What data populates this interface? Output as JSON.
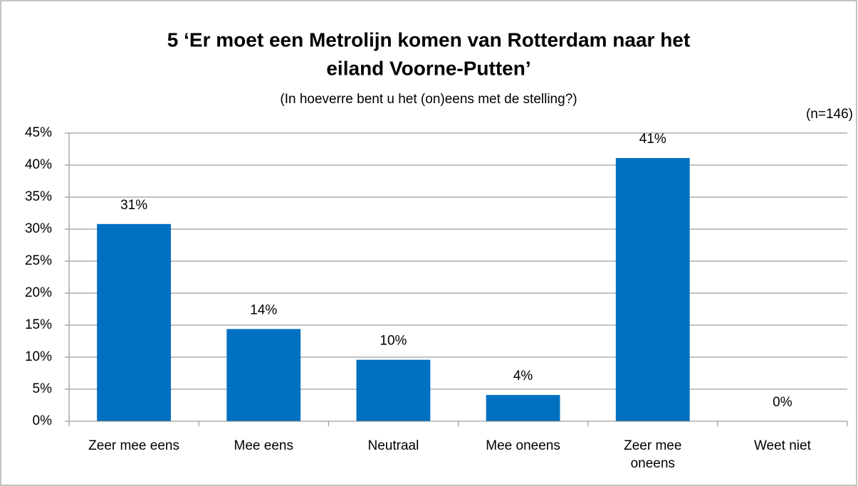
{
  "chart_data": {
    "type": "bar",
    "title": [
      "5 ‘Er moet een Metrolijn komen van Rotterdam naar het",
      "eiland Voorne-Putten’"
    ],
    "subtitle": "(In hoeverre bent u het (on)eens met de stelling?)",
    "annotation": "(n=146)",
    "categories": [
      "Zeer mee eens",
      "Mee eens",
      "Neutraal",
      "Mee oneens",
      "Zeer mee oneens",
      "Weet niet"
    ],
    "values": [
      30.8,
      14.4,
      9.6,
      4.1,
      41.1,
      0
    ],
    "value_labels": [
      "31%",
      "14%",
      "10%",
      "4%",
      "41%",
      "0%"
    ],
    "color": "#0070c0",
    "ylim": [
      0,
      45
    ],
    "yticks": [
      {
        "value": 0,
        "label": "0%"
      },
      {
        "value": 5,
        "label": "5%"
      },
      {
        "value": 10,
        "label": "10%"
      },
      {
        "value": 15,
        "label": "15%"
      },
      {
        "value": 20,
        "label": "20%"
      },
      {
        "value": 25,
        "label": "25%"
      },
      {
        "value": 30,
        "label": "30%"
      },
      {
        "value": 35,
        "label": "35%"
      },
      {
        "value": 40,
        "label": "40%"
      },
      {
        "value": 45,
        "label": "45%"
      }
    ],
    "grid": true
  }
}
